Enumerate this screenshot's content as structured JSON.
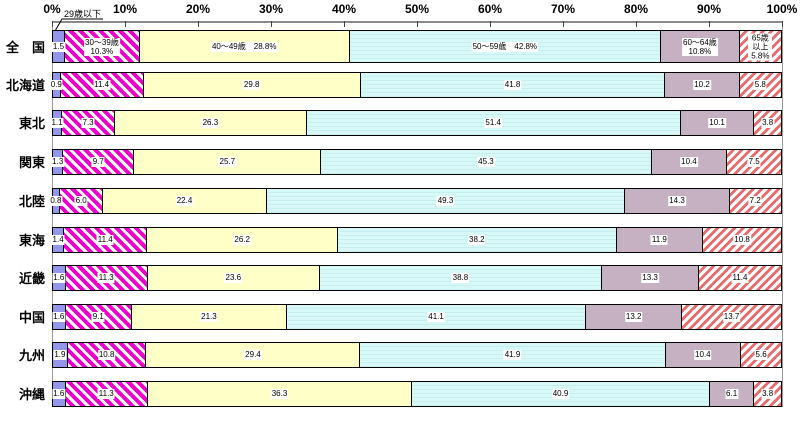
{
  "chart_data": {
    "type": "stacked-bar-horizontal",
    "orientation": "horizontal",
    "unit": "%",
    "x_axis": {
      "min": 0,
      "max": 100,
      "ticks": [
        "0%",
        "10%",
        "20%",
        "30%",
        "40%",
        "50%",
        "60%",
        "70%",
        "80%",
        "90%",
        "100%"
      ],
      "grid": false
    },
    "annotation": {
      "label": "29歳以下"
    },
    "categories": [
      {
        "name": "29歳以下",
        "color": "#9595ec",
        "pattern": "solid"
      },
      {
        "name": "30〜39歳",
        "color": "#ee00cc",
        "pattern": "hatch-down"
      },
      {
        "name": "40〜49歳",
        "color": "#ffffc8",
        "pattern": "solid"
      },
      {
        "name": "50〜59歳",
        "color": "#cdf2f2",
        "pattern": "solid"
      },
      {
        "name": "60〜64歳",
        "color": "#c5b1c1",
        "pattern": "solid"
      },
      {
        "name": "65歳以上",
        "color": "#e86a6a",
        "pattern": "hatch-up"
      }
    ],
    "national_value_suffix": "%",
    "regions": [
      {
        "name": "全　国",
        "values": [
          1.5,
          10.3,
          28.8,
          42.8,
          10.8,
          5.8
        ],
        "show_category_names": true
      },
      {
        "name": "北海道",
        "values": [
          0.9,
          11.4,
          29.8,
          41.8,
          10.2,
          5.8
        ]
      },
      {
        "name": "東北",
        "values": [
          1.1,
          7.3,
          26.3,
          51.4,
          10.1,
          3.8
        ]
      },
      {
        "name": "関東",
        "values": [
          1.3,
          9.7,
          25.7,
          45.3,
          10.4,
          7.5
        ]
      },
      {
        "name": "北陸",
        "values": [
          0.8,
          6.0,
          22.4,
          49.3,
          14.3,
          7.2
        ]
      },
      {
        "name": "東海",
        "values": [
          1.4,
          11.4,
          26.2,
          38.2,
          11.9,
          10.8
        ]
      },
      {
        "name": "近畿",
        "values": [
          1.6,
          11.3,
          23.6,
          38.8,
          13.3,
          11.4
        ]
      },
      {
        "name": "中国",
        "values": [
          1.6,
          9.1,
          21.3,
          41.1,
          13.2,
          13.7
        ]
      },
      {
        "name": "九州",
        "values": [
          1.9,
          10.8,
          29.4,
          41.9,
          10.4,
          5.6
        ]
      },
      {
        "name": "沖縄",
        "values": [
          1.6,
          11.3,
          36.3,
          40.9,
          6.1,
          3.8
        ]
      }
    ]
  }
}
